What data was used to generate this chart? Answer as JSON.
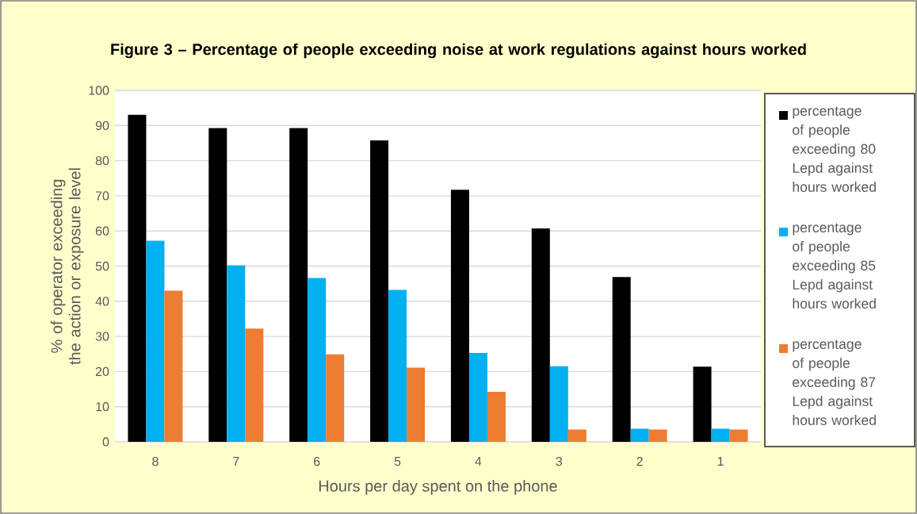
{
  "chart_data": {
    "type": "bar",
    "title": "Figure 3 – Percentage of people exceeding noise at work regulations against hours worked",
    "xlabel": "Hours per day spent on the phone",
    "ylabel": "% of operator exceeding the action or exposure level",
    "categories": [
      "8",
      "7",
      "6",
      "5",
      "4",
      "3",
      "2",
      "1"
    ],
    "series": [
      {
        "name": "percentage of people exceeding 80 Lepd against hours worked",
        "color": "#000000",
        "values": [
          93.1,
          89.3,
          89.3,
          85.8,
          71.7,
          60.7,
          46.9,
          21.4
        ]
      },
      {
        "name": "percentage of people exceeding 85 Lepd against hours worked",
        "color": "#00b0f0",
        "values": [
          57.2,
          50.2,
          46.6,
          43.2,
          25.3,
          21.5,
          3.7,
          3.7
        ]
      },
      {
        "name": "percentage of people exceeding 87 Lepd against hours worked",
        "color": "#ed7d31",
        "values": [
          43.0,
          32.2,
          24.9,
          21.1,
          14.2,
          3.5,
          3.5,
          3.5
        ]
      }
    ],
    "ylim": [
      0,
      100
    ],
    "yticks": [
      0,
      10,
      20,
      30,
      40,
      50,
      60,
      70,
      80,
      90,
      100
    ],
    "grid": "y",
    "legend": "right"
  }
}
